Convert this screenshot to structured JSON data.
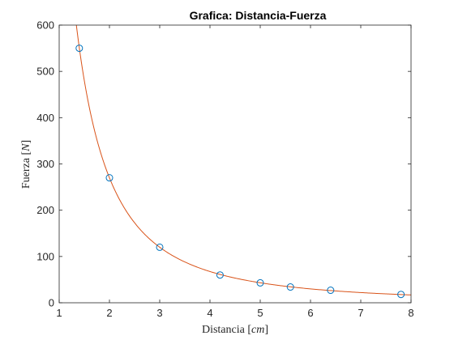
{
  "chart_data": {
    "type": "scatter",
    "title": "Grafica: Distancia-Fuerza",
    "xlabel": {
      "text": "Distancia ",
      "open": "[",
      "unit": "cm",
      "close": "]"
    },
    "ylabel": {
      "text": "Fuerza ",
      "open": "[",
      "unit": "N",
      "close": "]"
    },
    "xlim": [
      1,
      8
    ],
    "ylim": [
      0,
      600
    ],
    "xticks": [
      "1",
      "2",
      "3",
      "4",
      "5",
      "6",
      "7",
      "8"
    ],
    "yticks": [
      "0",
      "100",
      "200",
      "300",
      "400",
      "500",
      "600"
    ],
    "grid": false,
    "legend": "none",
    "points": {
      "x": [
        1.4,
        2.0,
        3.0,
        4.2,
        5.0,
        5.6,
        6.4,
        7.8
      ],
      "y": [
        550,
        270,
        120,
        60,
        43,
        34,
        27,
        18
      ],
      "marker": "circle",
      "edge_color": "#0072bd",
      "face_color": "none"
    },
    "fit": {
      "model": "y = k / x^2",
      "k": 1080,
      "x_range": [
        1.33,
        8
      ],
      "color": "#d95319"
    }
  }
}
